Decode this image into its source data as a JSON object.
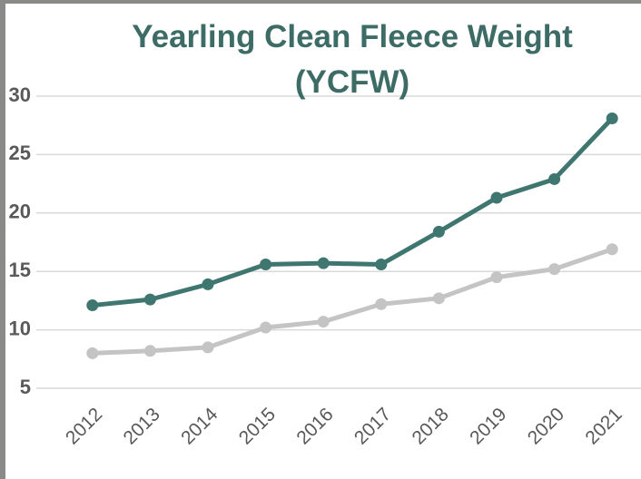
{
  "chart_data": {
    "type": "line",
    "title": "Yearling Clean Fleece Weight (YCFW)",
    "categories": [
      "2012",
      "2013",
      "2014",
      "2015",
      "2016",
      "2017",
      "2018",
      "2019",
      "2020",
      "2021"
    ],
    "series": [
      {
        "color": "#3f7770",
        "values": [
          12.1,
          12.6,
          13.9,
          15.6,
          15.7,
          15.6,
          18.4,
          21.3,
          22.9,
          28.1
        ]
      },
      {
        "color": "#c4c4c4",
        "values": [
          8.0,
          8.2,
          8.5,
          10.2,
          10.7,
          12.2,
          12.7,
          14.5,
          15.2,
          16.9
        ]
      }
    ],
    "ylim": [
      5,
      30
    ],
    "yticks": [
      5,
      10,
      15,
      20,
      25,
      30
    ],
    "grid": true
  }
}
